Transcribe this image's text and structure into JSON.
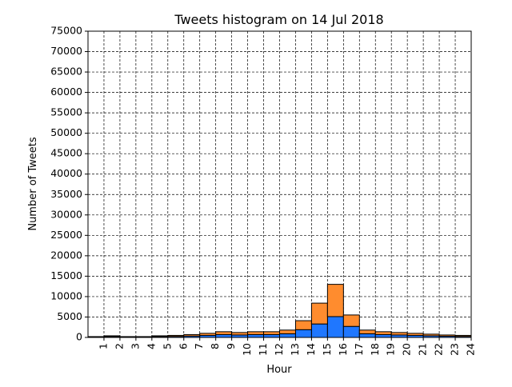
{
  "chart_data": {
    "type": "histogram",
    "title": "Tweets histogram on 14 Jul 2018",
    "x_label": "Hour",
    "y_label": "Number of Tweets",
    "bins": [
      0,
      1,
      2,
      3,
      4,
      5,
      6,
      7,
      8,
      9,
      10,
      11,
      12,
      13,
      14,
      15,
      16,
      17,
      18,
      19,
      20,
      21,
      22,
      23,
      24
    ],
    "series": [
      {
        "color": "#1f77ff",
        "values": [
          100,
          200,
          100,
          100,
          200,
          250,
          350,
          500,
          700,
          600,
          700,
          700,
          900,
          1900,
          3300,
          5100,
          2700,
          900,
          700,
          600,
          500,
          400,
          300,
          250
        ]
      },
      {
        "color": "#ff8c2e",
        "values": [
          100,
          200,
          100,
          100,
          200,
          250,
          350,
          500,
          700,
          600,
          700,
          700,
          900,
          2200,
          5100,
          7900,
          2800,
          900,
          700,
          600,
          500,
          400,
          300,
          250
        ]
      }
    ],
    "stacked": true,
    "xlim": [
      0,
      24
    ],
    "xticks": [
      1,
      2,
      3,
      4,
      5,
      6,
      7,
      8,
      9,
      10,
      11,
      12,
      13,
      14,
      15,
      16,
      17,
      18,
      19,
      20,
      21,
      22,
      23,
      24
    ],
    "ylim": [
      0,
      75000
    ],
    "yticks": [
      0,
      5000,
      10000,
      15000,
      20000,
      25000,
      30000,
      35000,
      40000,
      45000,
      50000,
      55000,
      60000,
      65000,
      70000,
      75000
    ],
    "grid": true
  }
}
